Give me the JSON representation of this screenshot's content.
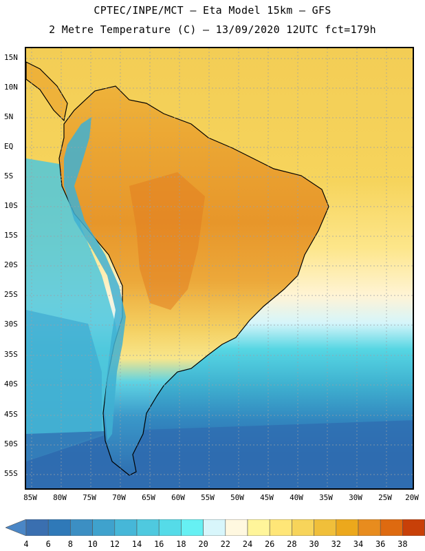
{
  "header": {
    "title_line1": "CPTEC/INPE/MCT –  Eta Model 15km – GFS",
    "title_line2": "2 Metre Temperature (C) – 13/09/2020 12UTC fct=179h"
  },
  "map": {
    "region": "South America",
    "lat_labels": [
      "15N",
      "10N",
      "5N",
      "EQ",
      "5S",
      "10S",
      "15S",
      "20S",
      "25S",
      "30S",
      "35S",
      "40S",
      "45S",
      "50S",
      "55S"
    ],
    "lon_labels": [
      "85W",
      "80W",
      "75W",
      "70W",
      "65W",
      "60W",
      "55W",
      "50W",
      "45W",
      "40W",
      "35W",
      "30W",
      "25W",
      "20W"
    ],
    "gridlines": "dotted"
  },
  "colorbar": {
    "labels": [
      "4",
      "6",
      "8",
      "10",
      "12",
      "14",
      "16",
      "18",
      "20",
      "22",
      "24",
      "26",
      "28",
      "30",
      "32",
      "34",
      "36",
      "38"
    ],
    "colors": [
      "#3a6fb0",
      "#2f79b8",
      "#3c8fc3",
      "#3fa2cd",
      "#46b7d8",
      "#4fc9df",
      "#55dbe8",
      "#66f0f3",
      "#d8f6fb",
      "#fff8e0",
      "#fff59a",
      "#ffe677",
      "#f7d45a",
      "#f0bf3a",
      "#eca81c",
      "#e88c1e",
      "#de6a10",
      "#c84008"
    ],
    "end_colors": {
      "low": "#4a86c6",
      "high": "#c1430a"
    }
  }
}
